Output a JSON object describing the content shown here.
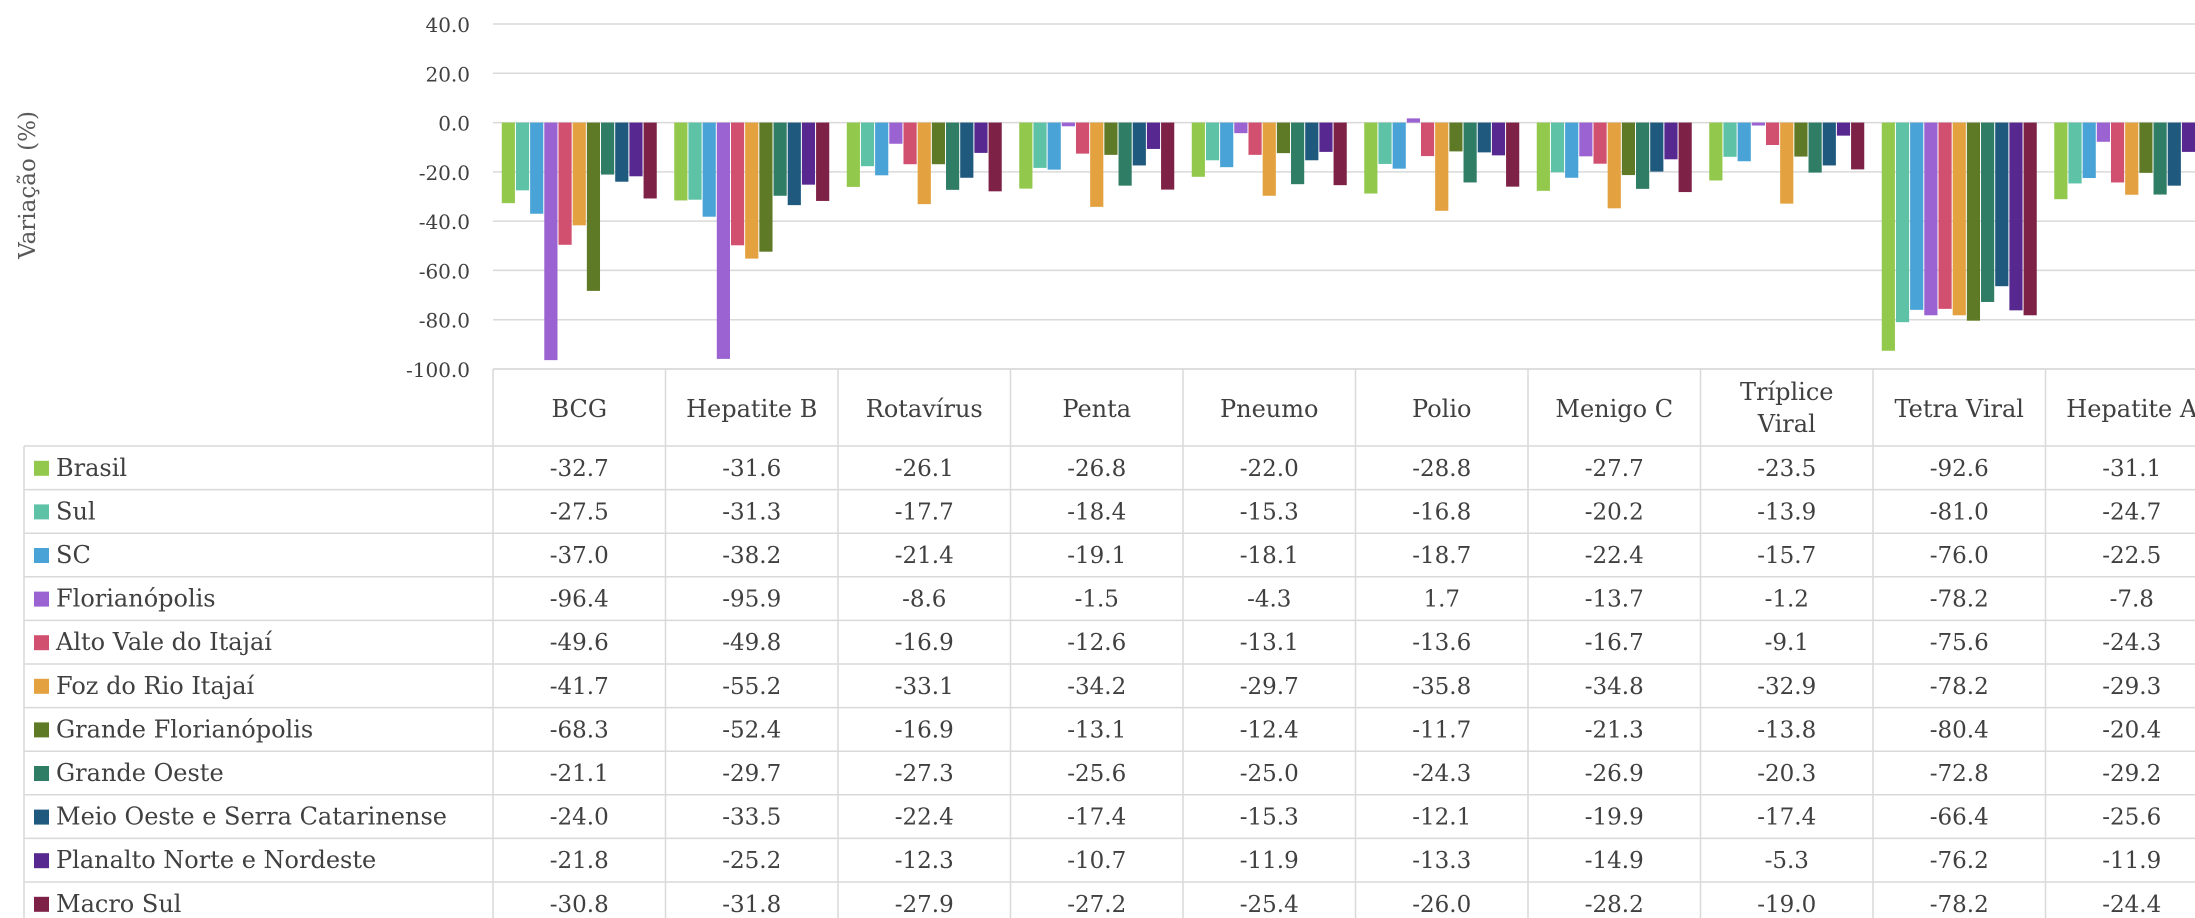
{
  "chart_data": {
    "type": "bar",
    "ylabel": "Variação (%)",
    "ylim": [
      -100,
      40
    ],
    "yticks": [
      "40.0",
      "20.0",
      "0.0",
      "-20.0",
      "-40.0",
      "-60.0",
      "-80.0",
      "-100.0"
    ],
    "yticks_values": [
      40,
      20,
      0,
      -20,
      -40,
      -60,
      -80,
      -100
    ],
    "grid": true,
    "legend_placement": "data-table-left",
    "categories": [
      "BCG",
      "Hepatite B",
      "Rotavírus",
      "Penta",
      "Pneumo",
      "Polio",
      "Menigo C",
      "Tríplice Viral",
      "Tetra Viral",
      "Hepatite A"
    ],
    "series": [
      {
        "name": "Brasil",
        "color": "#92c84b",
        "values": [
          -32.7,
          -31.6,
          -26.1,
          -26.8,
          -22.0,
          -28.8,
          -27.7,
          -23.5,
          -92.6,
          -31.1
        ],
        "labels": [
          "-32.7",
          "-31.6",
          "-26.1",
          "-26.8",
          "-22.0",
          "-28.8",
          "-27.7",
          "-23.5",
          "-92.6",
          "-31.1"
        ]
      },
      {
        "name": "Sul",
        "color": "#5ec3a6",
        "values": [
          -27.5,
          -31.3,
          -17.7,
          -18.4,
          -15.3,
          -16.8,
          -20.2,
          -13.9,
          -81.0,
          -24.7
        ],
        "labels": [
          "-27.5",
          "-31.3",
          "-17.7",
          "-18.4",
          "-15.3",
          "-16.8",
          "-20.2",
          "-13.9",
          "-81.0",
          "-24.7"
        ]
      },
      {
        "name": "SC",
        "color": "#4aa3d6",
        "values": [
          -37.0,
          -38.2,
          -21.4,
          -19.1,
          -18.1,
          -18.7,
          -22.4,
          -15.7,
          -76.0,
          -22.5
        ],
        "labels": [
          "-37.0",
          "-38.2",
          "-21.4",
          "-19.1",
          "-18.1",
          "-18.7",
          "-22.4",
          "-15.7",
          "-76.0",
          "-22.5"
        ]
      },
      {
        "name": "Florianópolis",
        "color": "#9b62d2",
        "values": [
          -96.4,
          -95.9,
          -8.6,
          -1.5,
          -4.3,
          1.7,
          -13.7,
          -1.2,
          -78.2,
          -7.8
        ],
        "labels": [
          "-96.4",
          "-95.9",
          "-8.6",
          "-1.5",
          "-4.3",
          "1.7",
          "-13.7",
          "-1.2",
          "-78.2",
          "-7.8"
        ]
      },
      {
        "name": "Alto Vale do Itajaí",
        "color": "#d2506f",
        "values": [
          -49.6,
          -49.8,
          -16.9,
          -12.6,
          -13.1,
          -13.6,
          -16.7,
          -9.1,
          -75.6,
          -24.3
        ],
        "labels": [
          "-49.6",
          "-49.8",
          "-16.9",
          "-12.6",
          "-13.1",
          "-13.6",
          "-16.7",
          "-9.1",
          "-75.6",
          "-24.3"
        ]
      },
      {
        "name": "Foz do Rio Itajaí",
        "color": "#e3a23f",
        "values": [
          -41.7,
          -55.2,
          -33.1,
          -34.2,
          -29.7,
          -35.8,
          -34.8,
          -32.9,
          -78.2,
          -29.3
        ],
        "labels": [
          "-41.7",
          "-55.2",
          "-33.1",
          "-34.2",
          "-29.7",
          "-35.8",
          "-34.8",
          "-32.9",
          "-78.2",
          "-29.3"
        ]
      },
      {
        "name": "Grande Florianópolis",
        "color": "#5f7a26",
        "values": [
          -68.3,
          -52.4,
          -16.9,
          -13.1,
          -12.4,
          -11.7,
          -21.3,
          -13.8,
          -80.4,
          -20.4
        ],
        "labels": [
          "-68.3",
          "-52.4",
          "-16.9",
          "-13.1",
          "-12.4",
          "-11.7",
          "-21.3",
          "-13.8",
          "-80.4",
          "-20.4"
        ]
      },
      {
        "name": "Grande Oeste",
        "color": "#2e7d64",
        "values": [
          -21.1,
          -29.7,
          -27.3,
          -25.6,
          -25.0,
          -24.3,
          -26.9,
          -20.3,
          -72.8,
          -29.2
        ],
        "labels": [
          "-21.1",
          "-29.7",
          "-27.3",
          "-25.6",
          "-25.0",
          "-24.3",
          "-26.9",
          "-20.3",
          "-72.8",
          "-29.2"
        ]
      },
      {
        "name": "Meio Oeste e Serra Catarinense",
        "color": "#1f5a7e",
        "values": [
          -24.0,
          -33.5,
          -22.4,
          -17.4,
          -15.3,
          -12.1,
          -19.9,
          -17.4,
          -66.4,
          -25.6
        ],
        "labels": [
          "-24.0",
          "-33.5",
          "-22.4",
          "-17.4",
          "-15.3",
          "-12.1",
          "-19.9",
          "-17.4",
          "-66.4",
          "-25.6"
        ]
      },
      {
        "name": "Planalto Norte e Nordeste",
        "color": "#57288f",
        "values": [
          -21.8,
          -25.2,
          -12.3,
          -10.7,
          -11.9,
          -13.3,
          -14.9,
          -5.3,
          -76.2,
          -11.9
        ],
        "labels": [
          "-21.8",
          "-25.2",
          "-12.3",
          "-10.7",
          "-11.9",
          "-13.3",
          "-14.9",
          "-5.3",
          "-76.2",
          "-11.9"
        ]
      },
      {
        "name": "Macro Sul",
        "color": "#7d2146",
        "values": [
          -30.8,
          -31.8,
          -27.9,
          -27.2,
          -25.4,
          -26.0,
          -28.2,
          -19.0,
          -78.2,
          -24.4
        ],
        "labels": [
          "-30.8",
          "-31.8",
          "-27.9",
          "-27.2",
          "-25.4",
          "-26.0",
          "-28.2",
          "-19.0",
          "-78.2",
          "-24.4"
        ]
      }
    ]
  }
}
